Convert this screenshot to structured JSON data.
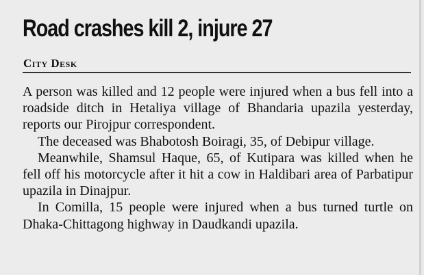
{
  "headline": "Road crashes kill 2, injure 27",
  "byline": "City Desk",
  "paragraphs": [
    "A person was killed and 12 people were injured when a bus fell into a roadside ditch in Hetaliya village of Bhandaria upazila yesterday, reports our Pirojpur correspondent.",
    "The deceased was Bhabotosh Boiragi, 35, of Debipur village.",
    "Meanwhile, Shamsul Haque, 65, of Kutipara was killed when he fell off his motorcycle after it hit a cow in Haldibari area of Parbatipur upazila in Dinajpur.",
    "In Comilla, 15 people were injured when a bus turned turtle on Dhaka-Chittagong highway in Daudkandi upazila."
  ]
}
